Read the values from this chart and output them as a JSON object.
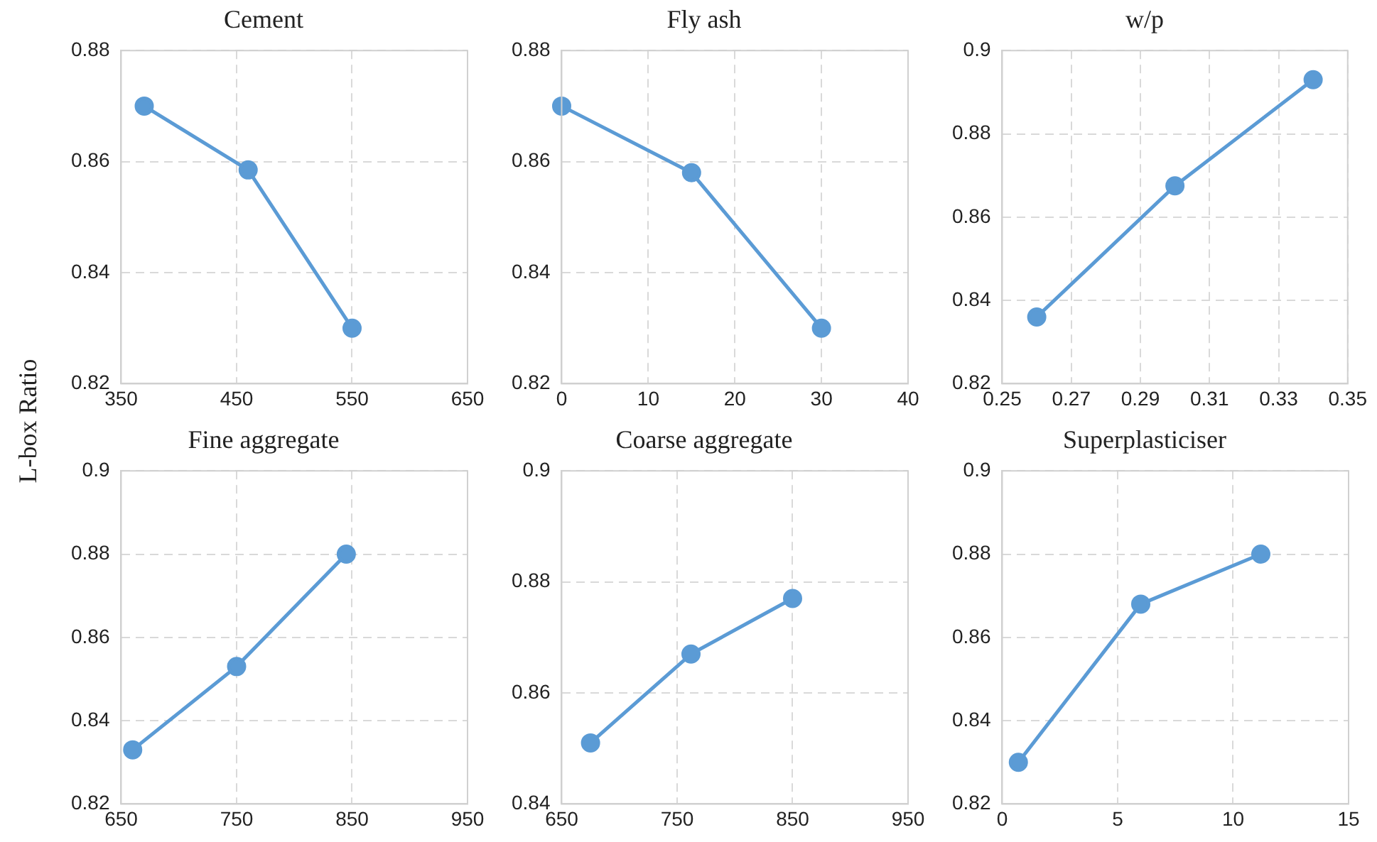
{
  "chart_data": [
    {
      "type": "line",
      "title": "Cement",
      "ylabel": "L-box Ratio",
      "x": [
        370,
        460,
        550
      ],
      "series": [
        {
          "color": "#5b9bd5",
          "values": [
            0.87,
            0.8585,
            0.83
          ]
        }
      ],
      "xlim": [
        350,
        650
      ],
      "xticks": [
        350,
        450,
        550,
        650
      ],
      "ylim": [
        0.82,
        0.88
      ],
      "yticks": [
        0.82,
        0.84,
        0.86,
        0.88
      ],
      "grid": true,
      "marker": "circle",
      "legend": false
    },
    {
      "type": "line",
      "title": "Fly ash",
      "x": [
        0,
        15,
        30
      ],
      "series": [
        {
          "color": "#5b9bd5",
          "values": [
            0.87,
            0.858,
            0.83
          ]
        }
      ],
      "xlim": [
        0,
        40
      ],
      "xticks": [
        0,
        10,
        20,
        30,
        40
      ],
      "ylim": [
        0.82,
        0.88
      ],
      "yticks": [
        0.82,
        0.84,
        0.86,
        0.88
      ],
      "grid": true,
      "marker": "circle",
      "legend": false
    },
    {
      "type": "line",
      "title": "w/p",
      "x": [
        0.26,
        0.3,
        0.34
      ],
      "series": [
        {
          "color": "#5b9bd5",
          "values": [
            0.836,
            0.8675,
            0.893
          ]
        }
      ],
      "xlim": [
        0.25,
        0.35
      ],
      "xticks": [
        0.25,
        0.27,
        0.29,
        0.31,
        0.33,
        0.35
      ],
      "ylim": [
        0.82,
        0.9
      ],
      "yticks": [
        0.82,
        0.84,
        0.86,
        0.88,
        0.9
      ],
      "grid": true,
      "marker": "circle",
      "legend": false
    },
    {
      "type": "line",
      "title": "Fine aggregate",
      "x": [
        660,
        750,
        845
      ],
      "series": [
        {
          "color": "#5b9bd5",
          "values": [
            0.833,
            0.853,
            0.88
          ]
        }
      ],
      "xlim": [
        650,
        950
      ],
      "xticks": [
        650,
        750,
        850,
        950
      ],
      "ylim": [
        0.82,
        0.9
      ],
      "yticks": [
        0.82,
        0.84,
        0.86,
        0.88,
        0.9
      ],
      "grid": true,
      "marker": "circle",
      "legend": false
    },
    {
      "type": "line",
      "title": "Coarse aggregate",
      "x": [
        675,
        762,
        850
      ],
      "series": [
        {
          "color": "#5b9bd5",
          "values": [
            0.851,
            0.867,
            0.877
          ]
        }
      ],
      "xlim": [
        650,
        950
      ],
      "xticks": [
        650,
        750,
        850,
        950
      ],
      "ylim": [
        0.84,
        0.9
      ],
      "yticks": [
        0.84,
        0.86,
        0.88,
        0.9
      ],
      "grid": true,
      "marker": "circle",
      "legend": false
    },
    {
      "type": "line",
      "title": "Superplasticiser",
      "x": [
        0.7,
        6,
        11.2
      ],
      "series": [
        {
          "color": "#5b9bd5",
          "values": [
            0.83,
            0.868,
            0.88
          ]
        }
      ],
      "xlim": [
        0,
        15
      ],
      "xticks": [
        0,
        5,
        10,
        15
      ],
      "ylim": [
        0.82,
        0.9
      ],
      "yticks": [
        0.82,
        0.84,
        0.86,
        0.88,
        0.9
      ],
      "grid": true,
      "marker": "circle",
      "legend": false
    }
  ]
}
